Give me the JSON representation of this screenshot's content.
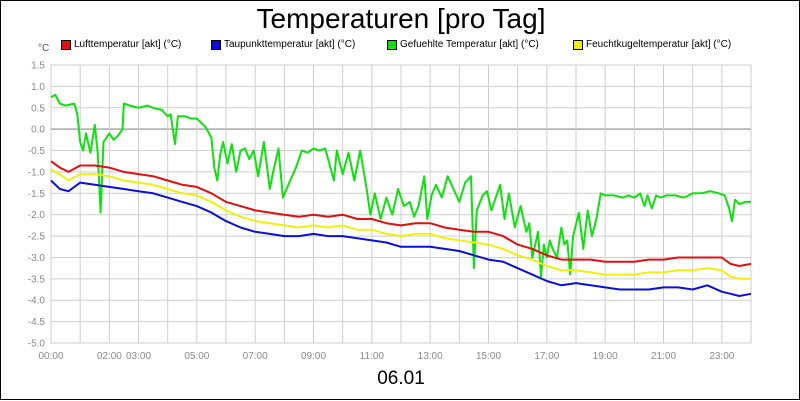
{
  "chart_data": {
    "type": "line",
    "title": "Temperaturen [pro Tag]",
    "date": "06.01",
    "ylabel": "°C",
    "xlabel": "",
    "ylim": [
      -5.0,
      1.5
    ],
    "yticks": [
      "1.5",
      "1.0",
      "0.5",
      "0.0",
      "-0.5",
      "-1.0",
      "-1.5",
      "-2.0",
      "-2.5",
      "-3.0",
      "-3.5",
      "-4.0",
      "-4.5",
      "-5.0"
    ],
    "xlim": [
      0,
      24
    ],
    "xticks": [
      {
        "t": 0,
        "label": "00:00"
      },
      {
        "t": 2,
        "label": "02:00"
      },
      {
        "t": 3,
        "label": "03:00"
      },
      {
        "t": 5,
        "label": "05:00"
      },
      {
        "t": 7,
        "label": "07:00"
      },
      {
        "t": 9,
        "label": "09:00"
      },
      {
        "t": 11,
        "label": "11:00"
      },
      {
        "t": 13,
        "label": "13:00"
      },
      {
        "t": 15,
        "label": "15:00"
      },
      {
        "t": 17,
        "label": "17:00"
      },
      {
        "t": 19,
        "label": "19:00"
      },
      {
        "t": 21,
        "label": "21:00"
      },
      {
        "t": 23,
        "label": "23:00"
      }
    ],
    "grid": true,
    "legend_position": "top",
    "series": [
      {
        "name": "Lufttemperatur [akt] (°C)",
        "color": "#e01010",
        "points": [
          [
            0,
            -0.75
          ],
          [
            0.3,
            -0.9
          ],
          [
            0.6,
            -1.0
          ],
          [
            1.0,
            -0.85
          ],
          [
            1.5,
            -0.85
          ],
          [
            2.0,
            -0.9
          ],
          [
            2.5,
            -1.0
          ],
          [
            3.0,
            -1.05
          ],
          [
            3.5,
            -1.1
          ],
          [
            4.0,
            -1.2
          ],
          [
            4.5,
            -1.3
          ],
          [
            5.0,
            -1.35
          ],
          [
            5.5,
            -1.5
          ],
          [
            6.0,
            -1.7
          ],
          [
            6.5,
            -1.8
          ],
          [
            7.0,
            -1.9
          ],
          [
            7.5,
            -1.95
          ],
          [
            8.0,
            -2.0
          ],
          [
            8.5,
            -2.05
          ],
          [
            9.0,
            -2.0
          ],
          [
            9.5,
            -2.05
          ],
          [
            10.0,
            -2.0
          ],
          [
            10.5,
            -2.1
          ],
          [
            11.0,
            -2.1
          ],
          [
            11.5,
            -2.2
          ],
          [
            12.0,
            -2.25
          ],
          [
            12.5,
            -2.2
          ],
          [
            13.0,
            -2.2
          ],
          [
            13.5,
            -2.3
          ],
          [
            14.0,
            -2.35
          ],
          [
            14.5,
            -2.4
          ],
          [
            15.0,
            -2.4
          ],
          [
            15.5,
            -2.5
          ],
          [
            16.0,
            -2.7
          ],
          [
            16.5,
            -2.8
          ],
          [
            17.0,
            -2.95
          ],
          [
            17.5,
            -3.05
          ],
          [
            18.0,
            -3.05
          ],
          [
            18.5,
            -3.05
          ],
          [
            19.0,
            -3.1
          ],
          [
            19.5,
            -3.1
          ],
          [
            20.0,
            -3.1
          ],
          [
            20.5,
            -3.05
          ],
          [
            21.0,
            -3.05
          ],
          [
            21.5,
            -3.0
          ],
          [
            22.0,
            -3.0
          ],
          [
            22.5,
            -3.0
          ],
          [
            23.0,
            -3.0
          ],
          [
            23.3,
            -3.15
          ],
          [
            23.6,
            -3.2
          ],
          [
            24.0,
            -3.15
          ]
        ]
      },
      {
        "name": "Taupunkttemperatur [akt] (°C)",
        "color": "#0a10d8",
        "points": [
          [
            0,
            -1.2
          ],
          [
            0.3,
            -1.4
          ],
          [
            0.6,
            -1.45
          ],
          [
            1.0,
            -1.25
          ],
          [
            1.5,
            -1.3
          ],
          [
            2.0,
            -1.35
          ],
          [
            2.5,
            -1.4
          ],
          [
            3.0,
            -1.45
          ],
          [
            3.5,
            -1.5
          ],
          [
            4.0,
            -1.6
          ],
          [
            4.5,
            -1.7
          ],
          [
            5.0,
            -1.8
          ],
          [
            5.5,
            -1.95
          ],
          [
            6.0,
            -2.15
          ],
          [
            6.5,
            -2.3
          ],
          [
            7.0,
            -2.4
          ],
          [
            7.5,
            -2.45
          ],
          [
            8.0,
            -2.5
          ],
          [
            8.5,
            -2.5
          ],
          [
            9.0,
            -2.45
          ],
          [
            9.5,
            -2.5
          ],
          [
            10.0,
            -2.5
          ],
          [
            10.5,
            -2.55
          ],
          [
            11.0,
            -2.6
          ],
          [
            11.5,
            -2.65
          ],
          [
            12.0,
            -2.75
          ],
          [
            12.5,
            -2.75
          ],
          [
            13.0,
            -2.75
          ],
          [
            13.5,
            -2.8
          ],
          [
            14.0,
            -2.85
          ],
          [
            14.5,
            -2.95
          ],
          [
            15.0,
            -3.05
          ],
          [
            15.5,
            -3.1
          ],
          [
            16.0,
            -3.25
          ],
          [
            16.5,
            -3.4
          ],
          [
            17.0,
            -3.55
          ],
          [
            17.5,
            -3.65
          ],
          [
            18.0,
            -3.6
          ],
          [
            18.5,
            -3.65
          ],
          [
            19.0,
            -3.7
          ],
          [
            19.5,
            -3.75
          ],
          [
            20.0,
            -3.75
          ],
          [
            20.5,
            -3.75
          ],
          [
            21.0,
            -3.7
          ],
          [
            21.5,
            -3.7
          ],
          [
            22.0,
            -3.75
          ],
          [
            22.5,
            -3.65
          ],
          [
            23.0,
            -3.8
          ],
          [
            23.3,
            -3.85
          ],
          [
            23.6,
            -3.9
          ],
          [
            24.0,
            -3.85
          ]
        ]
      },
      {
        "name": "Gefuehlte Temperatur [akt] (°C)",
        "color": "#10e010",
        "points": [
          [
            0,
            0.75
          ],
          [
            0.15,
            0.8
          ],
          [
            0.3,
            0.6
          ],
          [
            0.5,
            0.55
          ],
          [
            0.8,
            0.6
          ],
          [
            0.9,
            0.35
          ],
          [
            1.0,
            -0.3
          ],
          [
            1.1,
            -0.5
          ],
          [
            1.2,
            -0.1
          ],
          [
            1.35,
            -0.55
          ],
          [
            1.5,
            0.1
          ],
          [
            1.6,
            -0.55
          ],
          [
            1.7,
            -1.95
          ],
          [
            1.8,
            -0.3
          ],
          [
            2.0,
            -0.1
          ],
          [
            2.15,
            -0.25
          ],
          [
            2.3,
            -0.15
          ],
          [
            2.45,
            0.0
          ],
          [
            2.5,
            0.6
          ],
          [
            2.7,
            0.55
          ],
          [
            3.0,
            0.5
          ],
          [
            3.3,
            0.55
          ],
          [
            3.5,
            0.5
          ],
          [
            3.8,
            0.45
          ],
          [
            4.0,
            0.3
          ],
          [
            4.1,
            0.35
          ],
          [
            4.25,
            -0.35
          ],
          [
            4.35,
            0.3
          ],
          [
            4.6,
            0.3
          ],
          [
            4.8,
            0.25
          ],
          [
            5.0,
            0.25
          ],
          [
            5.3,
            0.05
          ],
          [
            5.5,
            -0.2
          ],
          [
            5.6,
            -0.9
          ],
          [
            5.7,
            -1.2
          ],
          [
            5.8,
            -0.6
          ],
          [
            5.9,
            -0.3
          ],
          [
            6.05,
            -0.8
          ],
          [
            6.2,
            -0.35
          ],
          [
            6.35,
            -1.0
          ],
          [
            6.5,
            -0.5
          ],
          [
            6.65,
            -0.45
          ],
          [
            6.8,
            -0.7
          ],
          [
            6.95,
            -0.5
          ],
          [
            7.1,
            -1.1
          ],
          [
            7.3,
            -0.3
          ],
          [
            7.5,
            -1.4
          ],
          [
            7.6,
            -1.05
          ],
          [
            7.8,
            -0.45
          ],
          [
            7.95,
            -1.6
          ],
          [
            8.2,
            -1.2
          ],
          [
            8.4,
            -0.9
          ],
          [
            8.6,
            -0.5
          ],
          [
            8.8,
            -0.55
          ],
          [
            9.0,
            -0.45
          ],
          [
            9.2,
            -0.5
          ],
          [
            9.4,
            -0.45
          ],
          [
            9.5,
            -0.7
          ],
          [
            9.7,
            -1.2
          ],
          [
            9.8,
            -0.5
          ],
          [
            10.0,
            -1.05
          ],
          [
            10.2,
            -0.55
          ],
          [
            10.4,
            -1.2
          ],
          [
            10.6,
            -0.5
          ],
          [
            10.8,
            -1.3
          ],
          [
            10.95,
            -2.0
          ],
          [
            11.1,
            -1.5
          ],
          [
            11.3,
            -2.1
          ],
          [
            11.5,
            -1.6
          ],
          [
            11.7,
            -2.0
          ],
          [
            11.9,
            -1.4
          ],
          [
            12.1,
            -1.8
          ],
          [
            12.3,
            -1.7
          ],
          [
            12.45,
            -2.05
          ],
          [
            12.6,
            -1.8
          ],
          [
            12.8,
            -1.1
          ],
          [
            12.9,
            -2.1
          ],
          [
            13.05,
            -1.55
          ],
          [
            13.2,
            -1.3
          ],
          [
            13.4,
            -1.6
          ],
          [
            13.6,
            -1.1
          ],
          [
            13.8,
            -1.4
          ],
          [
            14.0,
            -1.7
          ],
          [
            14.2,
            -1.25
          ],
          [
            14.4,
            -1.1
          ],
          [
            14.5,
            -3.25
          ],
          [
            14.6,
            -1.9
          ],
          [
            14.8,
            -1.55
          ],
          [
            14.95,
            -1.45
          ],
          [
            15.1,
            -1.9
          ],
          [
            15.25,
            -1.6
          ],
          [
            15.4,
            -1.3
          ],
          [
            15.55,
            -2.1
          ],
          [
            15.7,
            -1.5
          ],
          [
            15.9,
            -2.3
          ],
          [
            16.1,
            -1.8
          ],
          [
            16.3,
            -2.4
          ],
          [
            16.4,
            -2.2
          ],
          [
            16.5,
            -3.0
          ],
          [
            16.7,
            -2.4
          ],
          [
            16.8,
            -3.45
          ],
          [
            16.9,
            -2.7
          ],
          [
            17.0,
            -3.0
          ],
          [
            17.1,
            -2.6
          ],
          [
            17.2,
            -2.8
          ],
          [
            17.35,
            -3.0
          ],
          [
            17.5,
            -2.3
          ],
          [
            17.6,
            -2.7
          ],
          [
            17.7,
            -2.6
          ],
          [
            17.8,
            -3.4
          ],
          [
            17.9,
            -2.5
          ],
          [
            18.1,
            -1.95
          ],
          [
            18.25,
            -2.8
          ],
          [
            18.4,
            -1.9
          ],
          [
            18.55,
            -2.5
          ],
          [
            18.7,
            -2.1
          ],
          [
            18.85,
            -1.5
          ],
          [
            19.0,
            -1.55
          ],
          [
            19.3,
            -1.55
          ],
          [
            19.6,
            -1.6
          ],
          [
            19.8,
            -1.55
          ],
          [
            20.0,
            -1.6
          ],
          [
            20.2,
            -1.5
          ],
          [
            20.35,
            -1.8
          ],
          [
            20.45,
            -1.55
          ],
          [
            20.6,
            -1.85
          ],
          [
            20.75,
            -1.55
          ],
          [
            20.9,
            -1.6
          ],
          [
            21.1,
            -1.55
          ],
          [
            21.4,
            -1.55
          ],
          [
            21.7,
            -1.6
          ],
          [
            22.0,
            -1.5
          ],
          [
            22.3,
            -1.5
          ],
          [
            22.6,
            -1.45
          ],
          [
            22.9,
            -1.5
          ],
          [
            23.1,
            -1.55
          ],
          [
            23.25,
            -1.85
          ],
          [
            23.35,
            -2.15
          ],
          [
            23.45,
            -1.65
          ],
          [
            23.6,
            -1.75
          ],
          [
            23.8,
            -1.7
          ],
          [
            24.0,
            -1.7
          ]
        ]
      },
      {
        "name": "Feuchtkugeltemperatur [akt] (°C)",
        "color": "#f0f010",
        "points": [
          [
            0,
            -0.95
          ],
          [
            0.3,
            -1.05
          ],
          [
            0.6,
            -1.2
          ],
          [
            1.0,
            -1.05
          ],
          [
            1.5,
            -1.05
          ],
          [
            2.0,
            -1.1
          ],
          [
            2.5,
            -1.2
          ],
          [
            3.0,
            -1.25
          ],
          [
            3.5,
            -1.3
          ],
          [
            4.0,
            -1.4
          ],
          [
            4.5,
            -1.5
          ],
          [
            5.0,
            -1.55
          ],
          [
            5.5,
            -1.7
          ],
          [
            6.0,
            -1.9
          ],
          [
            6.5,
            -2.05
          ],
          [
            7.0,
            -2.15
          ],
          [
            7.5,
            -2.2
          ],
          [
            8.0,
            -2.25
          ],
          [
            8.5,
            -2.3
          ],
          [
            9.0,
            -2.25
          ],
          [
            9.5,
            -2.3
          ],
          [
            10.0,
            -2.25
          ],
          [
            10.5,
            -2.35
          ],
          [
            11.0,
            -2.35
          ],
          [
            11.5,
            -2.45
          ],
          [
            12.0,
            -2.5
          ],
          [
            12.5,
            -2.45
          ],
          [
            13.0,
            -2.45
          ],
          [
            13.5,
            -2.55
          ],
          [
            14.0,
            -2.6
          ],
          [
            14.5,
            -2.65
          ],
          [
            15.0,
            -2.7
          ],
          [
            15.5,
            -2.8
          ],
          [
            16.0,
            -2.95
          ],
          [
            16.5,
            -3.05
          ],
          [
            17.0,
            -3.2
          ],
          [
            17.5,
            -3.3
          ],
          [
            18.0,
            -3.3
          ],
          [
            18.5,
            -3.35
          ],
          [
            19.0,
            -3.4
          ],
          [
            19.5,
            -3.4
          ],
          [
            20.0,
            -3.4
          ],
          [
            20.5,
            -3.35
          ],
          [
            21.0,
            -3.35
          ],
          [
            21.5,
            -3.3
          ],
          [
            22.0,
            -3.3
          ],
          [
            22.5,
            -3.25
          ],
          [
            23.0,
            -3.3
          ],
          [
            23.3,
            -3.45
          ],
          [
            23.6,
            -3.5
          ],
          [
            24.0,
            -3.5
          ]
        ]
      }
    ]
  }
}
